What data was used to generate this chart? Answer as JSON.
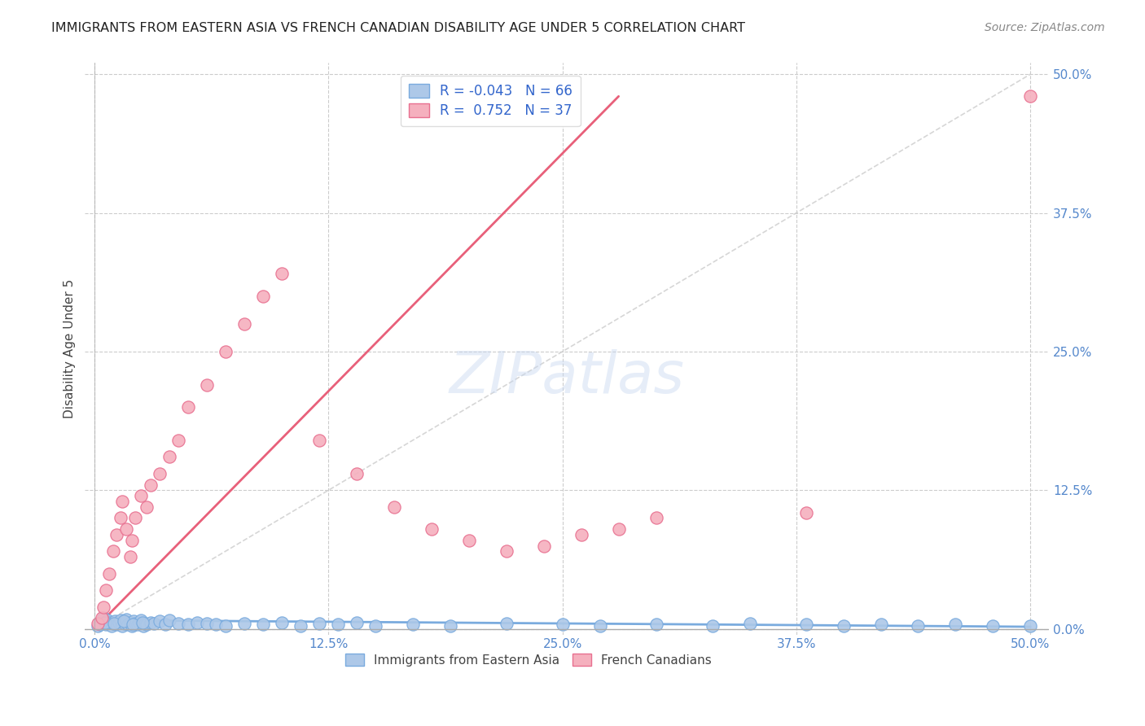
{
  "title": "IMMIGRANTS FROM EASTERN ASIA VS FRENCH CANADIAN DISABILITY AGE UNDER 5 CORRELATION CHART",
  "source": "Source: ZipAtlas.com",
  "ylabel": "Disability Age Under 5",
  "xticklabels": [
    "0.0%",
    "12.5%",
    "25.0%",
    "37.5%",
    "50.0%"
  ],
  "xticks": [
    0.0,
    12.5,
    25.0,
    37.5,
    50.0
  ],
  "yticklabels": [
    "0.0%",
    "12.5%",
    "25.0%",
    "37.5%",
    "50.0%"
  ],
  "yticks": [
    0.0,
    12.5,
    25.0,
    37.5,
    50.0
  ],
  "xlim": [
    -0.5,
    51
  ],
  "ylim": [
    -0.5,
    51
  ],
  "blue_R": "-0.043",
  "blue_N": "66",
  "pink_R": "0.752",
  "pink_N": "37",
  "blue_color": "#adc8e8",
  "pink_color": "#f5b0be",
  "blue_edge_color": "#7aabde",
  "pink_edge_color": "#e87090",
  "pink_line_color": "#e8607a",
  "blue_line_color": "#7aabde",
  "diagonal_color": "#cccccc",
  "watermark": "ZIPatlas",
  "legend_label_blue": "Immigrants from Eastern Asia",
  "legend_label_pink": "French Canadians",
  "blue_scatter_x": [
    0.2,
    0.4,
    0.5,
    0.6,
    0.7,
    0.8,
    0.9,
    1.0,
    1.1,
    1.2,
    1.3,
    1.4,
    1.5,
    1.6,
    1.7,
    1.8,
    1.9,
    2.0,
    2.1,
    2.2,
    2.3,
    2.4,
    2.5,
    2.6,
    2.7,
    2.8,
    3.0,
    3.2,
    3.5,
    3.8,
    4.0,
    4.5,
    5.0,
    5.5,
    6.0,
    6.5,
    7.0,
    8.0,
    9.0,
    10.0,
    11.0,
    12.0,
    13.0,
    14.0,
    15.0,
    17.0,
    19.0,
    22.0,
    25.0,
    27.0,
    30.0,
    33.0,
    35.0,
    38.0,
    40.0,
    42.0,
    44.0,
    46.0,
    48.0,
    50.0,
    0.3,
    0.55,
    1.05,
    1.55,
    2.05,
    2.55
  ],
  "blue_scatter_y": [
    0.3,
    0.5,
    1.0,
    0.4,
    0.8,
    0.6,
    0.3,
    0.5,
    0.7,
    0.4,
    0.6,
    0.8,
    0.3,
    0.5,
    0.9,
    0.4,
    0.6,
    0.3,
    0.7,
    0.5,
    0.4,
    0.6,
    0.8,
    0.3,
    0.5,
    0.4,
    0.6,
    0.5,
    0.7,
    0.4,
    0.8,
    0.5,
    0.4,
    0.6,
    0.5,
    0.4,
    0.3,
    0.5,
    0.4,
    0.6,
    0.3,
    0.5,
    0.4,
    0.6,
    0.3,
    0.4,
    0.3,
    0.5,
    0.4,
    0.3,
    0.4,
    0.3,
    0.5,
    0.4,
    0.3,
    0.4,
    0.3,
    0.4,
    0.3,
    0.3,
    0.4,
    0.6,
    0.5,
    0.7,
    0.4,
    0.6
  ],
  "pink_scatter_x": [
    0.2,
    0.4,
    0.5,
    0.6,
    0.8,
    1.0,
    1.2,
    1.4,
    1.5,
    1.7,
    1.9,
    2.0,
    2.2,
    2.5,
    2.8,
    3.0,
    3.5,
    4.0,
    4.5,
    5.0,
    6.0,
    7.0,
    8.0,
    9.0,
    10.0,
    12.0,
    14.0,
    16.0,
    18.0,
    20.0,
    22.0,
    24.0,
    26.0,
    28.0,
    30.0,
    38.0,
    50.0
  ],
  "pink_scatter_y": [
    0.5,
    1.0,
    2.0,
    3.5,
    5.0,
    7.0,
    8.5,
    10.0,
    11.5,
    9.0,
    6.5,
    8.0,
    10.0,
    12.0,
    11.0,
    13.0,
    14.0,
    15.5,
    17.0,
    20.0,
    22.0,
    25.0,
    27.5,
    30.0,
    32.0,
    17.0,
    14.0,
    11.0,
    9.0,
    8.0,
    7.0,
    7.5,
    8.5,
    9.0,
    10.0,
    10.5,
    48.0
  ],
  "pink_line_endpoints": [
    [
      0,
      0
    ],
    [
      28,
      48
    ]
  ],
  "blue_line_endpoints": [
    [
      0,
      0.8
    ],
    [
      50,
      0.2
    ]
  ]
}
